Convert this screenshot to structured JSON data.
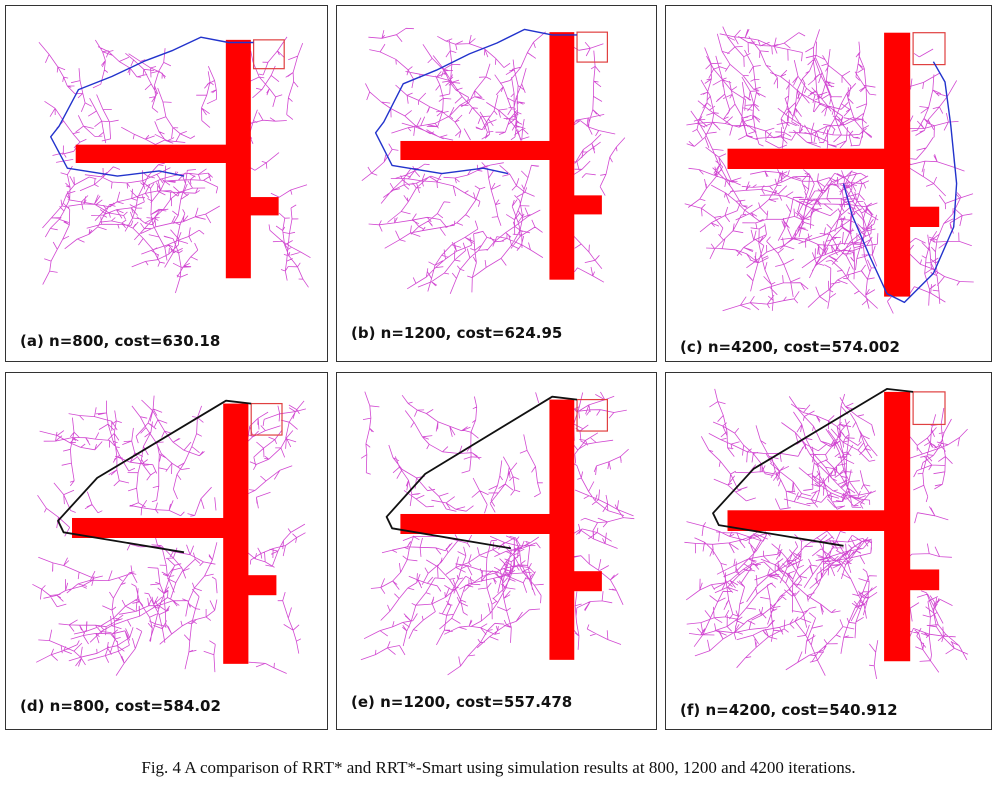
{
  "figure": {
    "caption": "Fig. 4 A comparison of RRT* and RRT*-Smart using simulation results at 800, 1200 and 4200 iterations.",
    "colors": {
      "tree": "#cc33cc",
      "obstacle": "#ff0000",
      "goal_box": "#e04040",
      "rrt_path": "#2233cc",
      "smart_path": "#111111"
    },
    "panels": [
      {
        "id": "a",
        "label": "(a) n=800, cost=630.18",
        "algorithm_row": "RRT*",
        "iterations": 800,
        "cost": 630.18,
        "density": 0.9,
        "path_style": "rrt"
      },
      {
        "id": "b",
        "label": "(b) n=1200, cost=624.95",
        "algorithm_row": "RRT*",
        "iterations": 1200,
        "cost": 624.95,
        "density": 1.0,
        "path_style": "rrt"
      },
      {
        "id": "c",
        "label": "(c) n=4200, cost=574.002",
        "algorithm_row": "RRT*",
        "iterations": 4200,
        "cost": 574.002,
        "density": 1.8,
        "path_style": "rrt-right"
      },
      {
        "id": "d",
        "label": "(d) n=800, cost=584.02",
        "algorithm_row": "RRT*-Smart",
        "iterations": 800,
        "cost": 584.02,
        "density": 0.9,
        "path_style": "smart"
      },
      {
        "id": "e",
        "label": "(e) n=1200, cost=557.478",
        "algorithm_row": "RRT*-Smart",
        "iterations": 1200,
        "cost": 557.478,
        "density": 1.0,
        "path_style": "smart"
      },
      {
        "id": "f",
        "label": "(f) n=4200, cost=540.912",
        "algorithm_row": "RRT*-Smart",
        "iterations": 4200,
        "cost": 540.912,
        "density": 1.6,
        "path_style": "smart"
      }
    ]
  }
}
